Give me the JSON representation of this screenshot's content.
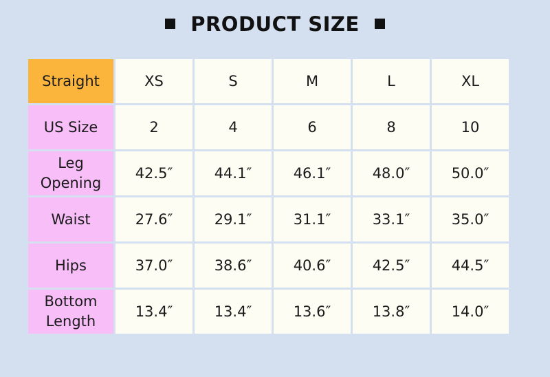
{
  "title": "PRODUCT SIZE",
  "colors": {
    "background": "#d4dff0",
    "corner": "#fbb53d",
    "row_header": "#f8bef8",
    "cell": "#fefdf4"
  },
  "header": {
    "corner": "Straight",
    "sizes": [
      "XS",
      "S",
      "M",
      "L",
      "XL"
    ]
  },
  "rows": [
    {
      "label": "US Size",
      "values": [
        "2",
        "4",
        "6",
        "8",
        "10"
      ]
    },
    {
      "label": "Leg Opening",
      "values": [
        "42.5″",
        "44.1″",
        "46.1″",
        "48.0″",
        "50.0″"
      ]
    },
    {
      "label": "Waist",
      "values": [
        "27.6″",
        "29.1″",
        "31.1″",
        "33.1″",
        "35.0″"
      ]
    },
    {
      "label": "Hips",
      "values": [
        "37.0″",
        "38.6″",
        "40.6″",
        "42.5″",
        "44.5″"
      ]
    },
    {
      "label": "Bottom Length",
      "values": [
        "13.4″",
        "13.4″",
        "13.6″",
        "13.8″",
        "14.0″"
      ]
    }
  ]
}
